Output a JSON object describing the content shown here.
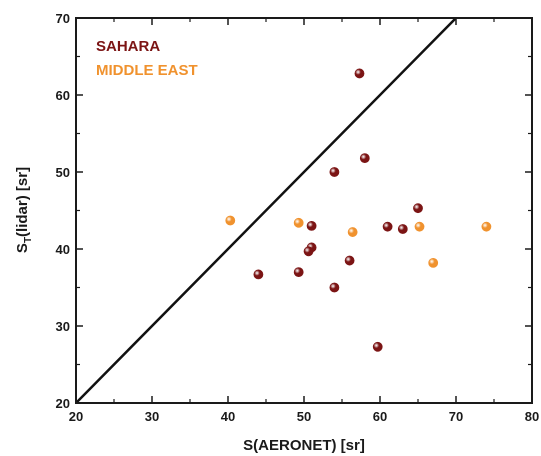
{
  "colors": {
    "sahara": "#7b1414",
    "middle_east": "#f0922e",
    "axis": "#1a1a1a",
    "one_to_one_line": "#111111"
  },
  "chart_data": {
    "type": "scatter",
    "xlabel": "S(AERONET) [sr]",
    "ylabel_main": "S",
    "ylabel_sub": "T",
    "ylabel_tail": "(lidar) [sr]",
    "xlim": [
      20,
      80
    ],
    "ylim": [
      20,
      70
    ],
    "xticks": [
      20,
      30,
      40,
      50,
      60,
      70,
      80
    ],
    "yticks": [
      20,
      30,
      40,
      50,
      60,
      70
    ],
    "grid": false,
    "legend_position": "top-left",
    "reference_line": {
      "from": [
        20,
        20
      ],
      "to": [
        70,
        70
      ],
      "description": "1:1"
    },
    "series": [
      {
        "name": "SAHARA",
        "color": "#7b1414",
        "points": [
          [
            57.3,
            62.8
          ],
          [
            58.0,
            51.8
          ],
          [
            54.0,
            50.0
          ],
          [
            65.0,
            45.3
          ],
          [
            51.0,
            43.0
          ],
          [
            61.0,
            42.9
          ],
          [
            63.0,
            42.6
          ],
          [
            51.0,
            40.2
          ],
          [
            50.6,
            39.7
          ],
          [
            56.0,
            38.5
          ],
          [
            49.3,
            37.0
          ],
          [
            44.0,
            36.7
          ],
          [
            54.0,
            35.0
          ],
          [
            59.7,
            27.3
          ]
        ]
      },
      {
        "name": "MIDDLE EAST",
        "color": "#f0922e",
        "points": [
          [
            40.3,
            43.7
          ],
          [
            49.3,
            43.4
          ],
          [
            56.4,
            42.2
          ],
          [
            65.2,
            42.9
          ],
          [
            74.0,
            42.9
          ],
          [
            67.0,
            38.2
          ]
        ]
      }
    ]
  }
}
